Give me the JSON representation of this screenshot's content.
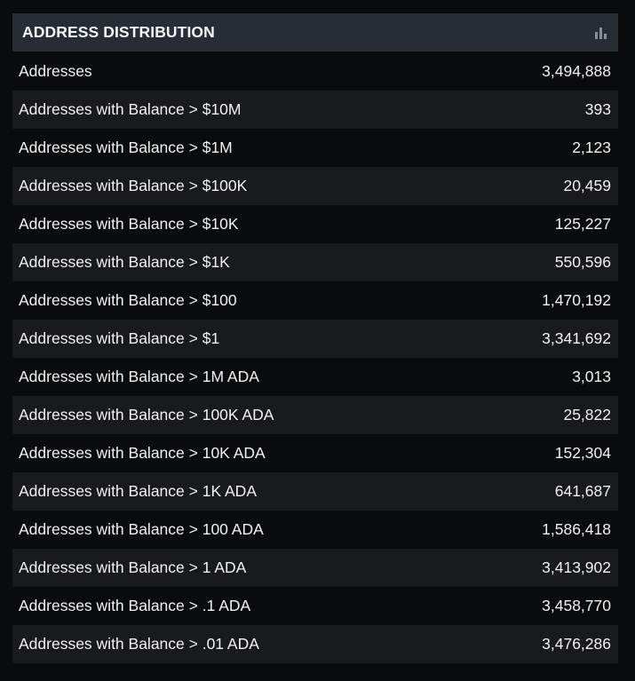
{
  "panel": {
    "title": "ADDRESS DISTRIBUTION",
    "icon": "bar-chart-icon"
  },
  "rows": [
    {
      "label": "Addresses",
      "value": "3,494,888"
    },
    {
      "label": "Addresses with Balance > $10M",
      "value": "393"
    },
    {
      "label": "Addresses with Balance > $1M",
      "value": "2,123"
    },
    {
      "label": "Addresses with Balance > $100K",
      "value": "20,459"
    },
    {
      "label": "Addresses with Balance > $10K",
      "value": "125,227"
    },
    {
      "label": "Addresses with Balance > $1K",
      "value": "550,596"
    },
    {
      "label": "Addresses with Balance > $100",
      "value": "1,470,192"
    },
    {
      "label": "Addresses with Balance > $1",
      "value": "3,341,692"
    },
    {
      "label": "Addresses with Balance > 1M ADA",
      "value": "3,013"
    },
    {
      "label": "Addresses with Balance > 100K ADA",
      "value": "25,822"
    },
    {
      "label": "Addresses with Balance > 10K ADA",
      "value": "152,304"
    },
    {
      "label": "Addresses with Balance > 1K ADA",
      "value": "641,687"
    },
    {
      "label": "Addresses with Balance > 100 ADA",
      "value": "1,586,418"
    },
    {
      "label": "Addresses with Balance > 1 ADA",
      "value": "3,413,902"
    },
    {
      "label": "Addresses with Balance > .1 ADA",
      "value": "3,458,770"
    },
    {
      "label": "Addresses with Balance > .01 ADA",
      "value": "3,476,286"
    }
  ]
}
